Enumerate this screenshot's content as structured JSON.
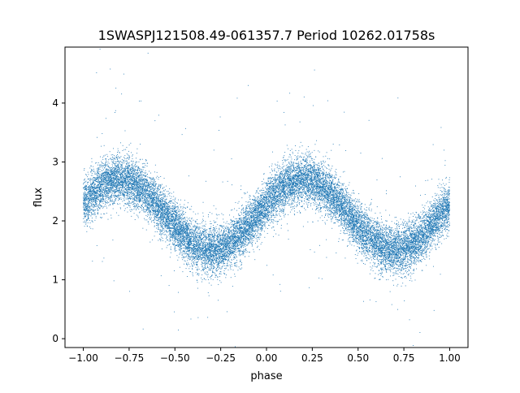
{
  "chart_data": {
    "type": "scatter",
    "title": "1SWASPJ121508.49-061357.7 Period 10262.01758s",
    "xlabel": "phase",
    "ylabel": "flux",
    "xlim": [
      -1.1,
      1.1
    ],
    "ylim": [
      -0.15,
      4.95
    ],
    "xticks": [
      -1.0,
      -0.75,
      -0.5,
      -0.25,
      0.0,
      0.25,
      0.5,
      0.75,
      1.0
    ],
    "xtick_labels": [
      "−1.00",
      "−0.75",
      "−0.50",
      "−0.25",
      "0.00",
      "0.25",
      "0.50",
      "0.75",
      "1.00"
    ],
    "yticks": [
      0,
      1,
      2,
      3,
      4
    ],
    "ytick_labels": [
      "0",
      "1",
      "2",
      "3",
      "4"
    ],
    "grid": false,
    "legend": "none",
    "series": [
      {
        "marker_color": "#1f77b4",
        "phase_range": [
          -1.0,
          1.0
        ],
        "model": {
          "description_points": [
            {
              "phase": -1.0,
              "flux": 2.5
            },
            {
              "phase": -0.8,
              "flux": 2.68
            },
            {
              "phase": -0.55,
              "flux": 2.3
            },
            {
              "phase": -0.3,
              "flux": 1.5
            },
            {
              "phase": 0.0,
              "flux": 2.5
            },
            {
              "phase": 0.2,
              "flux": 2.68
            },
            {
              "phase": 0.45,
              "flux": 2.3
            },
            {
              "phase": 0.7,
              "flux": 1.5
            },
            {
              "phase": 1.0,
              "flux": 2.5
            }
          ],
          "mean_flux": 2.1,
          "amplitude": 0.6,
          "scatter_sd": 0.2,
          "min_phase": -0.3,
          "period_in_phase": 1.0
        },
        "point_count": 19000,
        "outlier_count": 260
      }
    ]
  }
}
